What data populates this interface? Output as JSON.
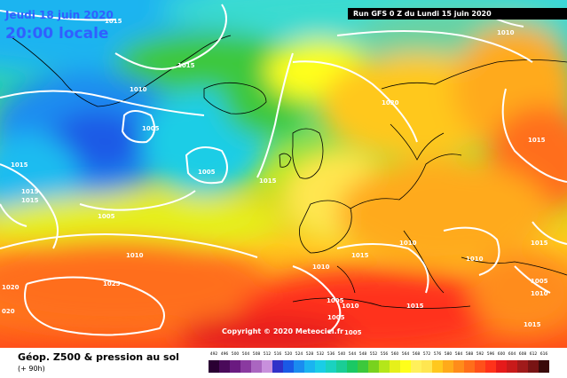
{
  "header": {
    "date": "Jeudi 18 juin 2020",
    "time": "20:00 locale",
    "run": "Run GFS 0 Z du Lundi 15 juin 2020"
  },
  "copyright": "Copyright © 2020 Meteociel.fr",
  "legend": {
    "title": "Géop. Z500 & pression au sol",
    "subtitle": "(+ 90h)",
    "scale": [
      {
        "value": "492",
        "color": "#2a0033"
      },
      {
        "value": "496",
        "color": "#4a0a5a"
      },
      {
        "value": "500",
        "color": "#6a1a80"
      },
      {
        "value": "504",
        "color": "#8a3aa0"
      },
      {
        "value": "508",
        "color": "#aa66c0"
      },
      {
        "value": "512",
        "color": "#c890dc"
      },
      {
        "value": "516",
        "color": "#3030c8"
      },
      {
        "value": "520",
        "color": "#1a5ae6"
      },
      {
        "value": "524",
        "color": "#1a8cf0"
      },
      {
        "value": "528",
        "color": "#1ab4f0"
      },
      {
        "value": "532",
        "color": "#1acde6"
      },
      {
        "value": "536",
        "color": "#1ad2c0"
      },
      {
        "value": "540",
        "color": "#1acd96"
      },
      {
        "value": "544",
        "color": "#1ac864"
      },
      {
        "value": "548",
        "color": "#3cc83c"
      },
      {
        "value": "552",
        "color": "#78d21e"
      },
      {
        "value": "556",
        "color": "#b4e61a"
      },
      {
        "value": "560",
        "color": "#e6f01a"
      },
      {
        "value": "564",
        "color": "#ffff1a"
      },
      {
        "value": "568",
        "color": "#fff05a"
      },
      {
        "value": "572",
        "color": "#ffe650"
      },
      {
        "value": "576",
        "color": "#ffc81e"
      },
      {
        "value": "580",
        "color": "#ffaa1a"
      },
      {
        "value": "584",
        "color": "#ff8c1a"
      },
      {
        "value": "588",
        "color": "#ff6e1a"
      },
      {
        "value": "592",
        "color": "#ff501a"
      },
      {
        "value": "596",
        "color": "#ff321a"
      },
      {
        "value": "600",
        "color": "#e61a1a"
      },
      {
        "value": "604",
        "color": "#c81a1a"
      },
      {
        "value": "608",
        "color": "#a01a1a"
      },
      {
        "value": "612",
        "color": "#781414"
      },
      {
        "value": "616",
        "color": "#3a0a0a"
      }
    ]
  },
  "isobars": [
    "1015",
    "1010",
    "1015",
    "1010",
    "1005",
    "1005",
    "1015",
    "1015",
    "1015",
    "1005",
    "1015",
    "1020",
    "1015",
    "1010",
    "1025",
    "1020",
    "020",
    "1010",
    "1015",
    "1010",
    "1005",
    "1010",
    "1005",
    "1015",
    "1010",
    "1015",
    "1005",
    "1010",
    "1015",
    "1005"
  ]
}
